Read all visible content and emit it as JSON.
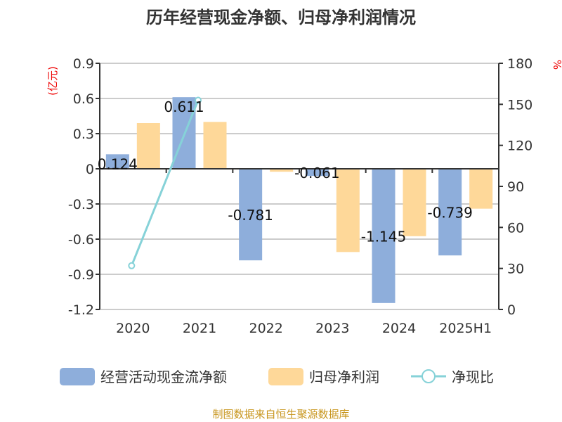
{
  "chart_data": {
    "type": "bar",
    "title": "历年经营现金净额、归母净利润情况",
    "categories": [
      "2020",
      "2021",
      "2022",
      "2023",
      "2024",
      "2025H1"
    ],
    "series": [
      {
        "name": "经营活动现金流净额",
        "type": "bar",
        "axis": "left",
        "color": "#8eaedb",
        "values": [
          0.124,
          0.611,
          -0.781,
          -0.061,
          -1.145,
          -0.739
        ],
        "labels": [
          "0.124",
          "0.611",
          "-0.781",
          "-0.061",
          "-1.145",
          "-0.739"
        ]
      },
      {
        "name": "归母净利润",
        "type": "bar",
        "axis": "left",
        "color": "#fed899",
        "values": [
          0.39,
          0.4,
          -0.025,
          -0.71,
          -0.575,
          -0.34
        ]
      },
      {
        "name": "净现比",
        "type": "line",
        "axis": "right",
        "color": "#86d2d8",
        "values": [
          32,
          153,
          null,
          null,
          null,
          null
        ]
      }
    ],
    "yleft": {
      "label": "(亿元)",
      "lim": [
        -1.2,
        0.9
      ],
      "ticks": [
        "0.9",
        "0.6",
        "0.3",
        "0",
        "-0.3",
        "-0.6",
        "-0.9",
        "-1.2"
      ]
    },
    "yright": {
      "label": "%",
      "lim": [
        0,
        180
      ],
      "ticks": [
        "180",
        "150",
        "120",
        "90",
        "60",
        "30",
        "0"
      ]
    },
    "grid": true,
    "legend": "bottom",
    "source": "制图数据来自恒生聚源数据库"
  }
}
